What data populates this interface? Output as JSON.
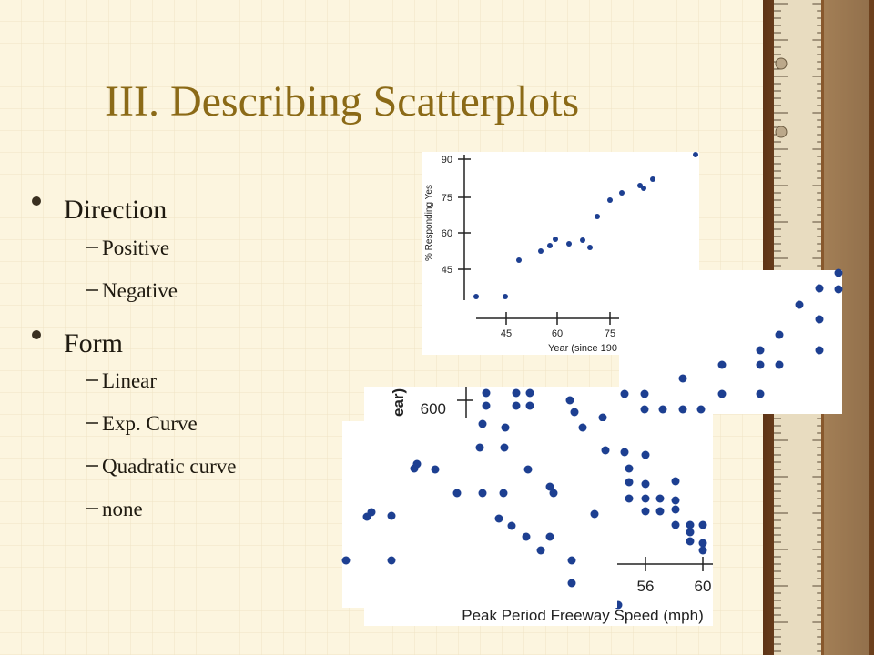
{
  "title": "III. Describing Scatterplots",
  "bullets": [
    {
      "text": "Direction",
      "items": [
        "Positive",
        "Negative"
      ]
    },
    {
      "text": "Form",
      "items": [
        "Linear",
        "Exp. Curve",
        "Quadratic curve",
        "none"
      ]
    }
  ],
  "figures": [
    {
      "y_label": "% Responding Yes",
      "y_ticks": [
        "90",
        "75",
        "60",
        "45"
      ],
      "x_ticks": [
        "45",
        "60",
        "75"
      ],
      "x_label": "Year (since 190"
    },
    {
      "y_label": "ear)",
      "y_ticks": [
        "600"
      ],
      "x_ticks": [
        "56",
        "60"
      ],
      "x_label": "Peak Period Freeway Speed (mph)"
    }
  ]
}
